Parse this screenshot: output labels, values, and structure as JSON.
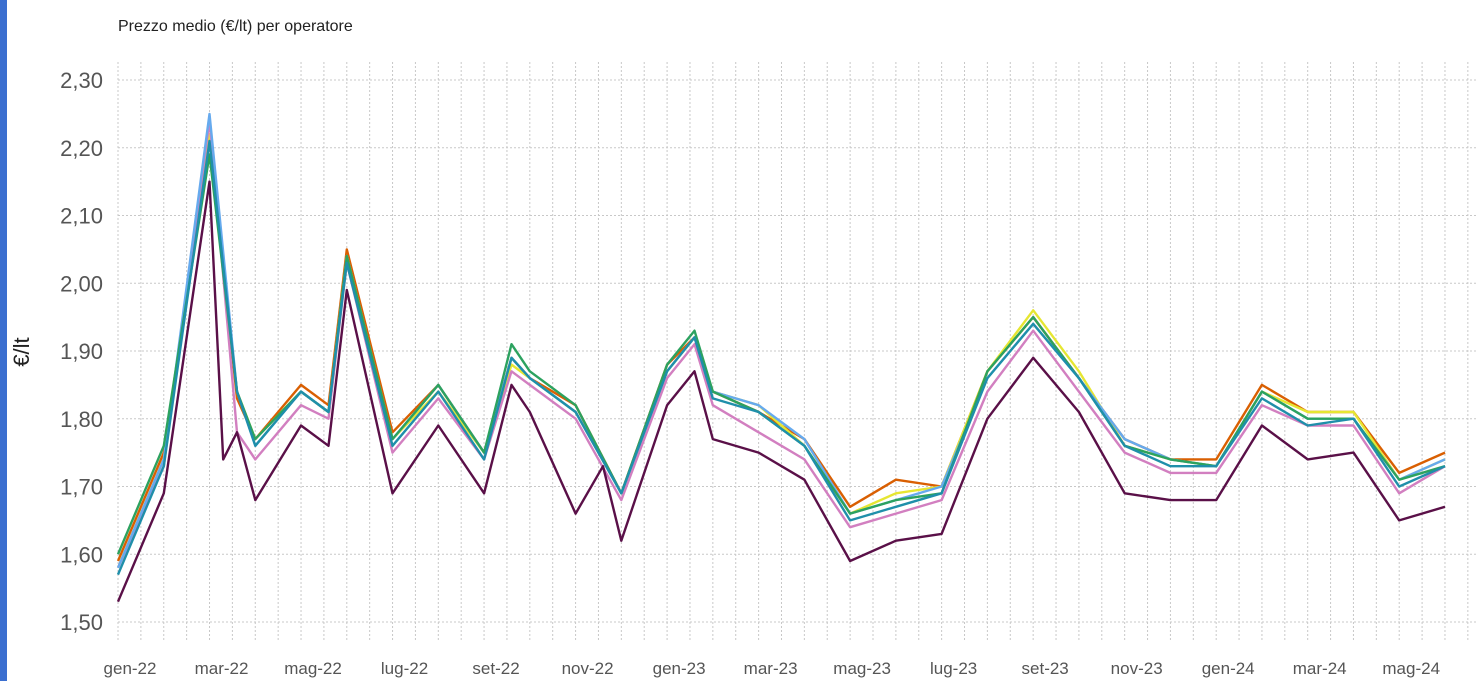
{
  "chart_data": {
    "type": "line",
    "title": "Prezzo medio (€/lt) per operatore",
    "ylabel": "€/lt",
    "xlabel": "",
    "ylim": [
      1.5,
      2.3
    ],
    "y_ticks": [
      "1,50",
      "1,60",
      "1,70",
      "1,80",
      "1,90",
      "2,00",
      "2,10",
      "2,20",
      "2,30"
    ],
    "x_ticks": [
      "gen-22",
      "mar-22",
      "mag-22",
      "lug-22",
      "set-22",
      "nov-22",
      "gen-23",
      "mar-23",
      "mag-23",
      "lug-23",
      "set-23",
      "nov-23",
      "gen-24",
      "mar-24",
      "mag-24"
    ],
    "grid": true,
    "months": [
      "gen-22",
      "feb-22",
      "mar-22",
      "apr-22",
      "mag-22",
      "giu-22",
      "lug-22",
      "ago-22",
      "set-22",
      "ott-22",
      "nov-22",
      "dic-22",
      "gen-23",
      "feb-23",
      "mar-23",
      "apr-23",
      "mag-23",
      "giu-23",
      "lug-23",
      "ago-23",
      "set-23",
      "ott-23",
      "nov-23",
      "dic-23",
      "gen-24",
      "feb-24",
      "mar-24",
      "apr-24",
      "mag-24",
      "giu-24"
    ],
    "series": [
      {
        "color": "#d95f02",
        "points": [
          [
            "gen-22",
            1.59
          ],
          [
            "feb-22",
            1.75
          ],
          [
            "mar-22",
            2.21
          ],
          [
            "mar-22",
            1.83
          ],
          [
            "apr-22",
            1.77
          ],
          [
            "mag-22",
            1.85
          ],
          [
            "mag-22",
            1.82
          ],
          [
            "giu-22",
            2.05
          ],
          [
            "lug-22",
            1.78
          ],
          [
            "ago-22",
            1.85
          ],
          [
            "set-22",
            1.75
          ],
          [
            "set-22",
            1.89
          ],
          [
            "ott-22",
            1.86
          ],
          [
            "nov-22",
            1.82
          ],
          [
            "dic-22",
            1.69
          ],
          [
            "gen-23",
            1.88
          ],
          [
            "gen-23",
            1.92
          ],
          [
            "feb-23",
            1.84
          ],
          [
            "mar-23",
            1.81
          ],
          [
            "apr-23",
            1.77
          ],
          [
            "mag-23",
            1.67
          ],
          [
            "giu-23",
            1.71
          ],
          [
            "lug-23",
            1.7
          ],
          [
            "ago-23",
            1.87
          ],
          [
            "set-23",
            1.95
          ],
          [
            "ott-23",
            1.86
          ],
          [
            "nov-23",
            1.77
          ],
          [
            "dic-23",
            1.74
          ],
          [
            "gen-24",
            1.74
          ],
          [
            "feb-24",
            1.85
          ],
          [
            "mar-24",
            1.81
          ],
          [
            "apr-24",
            1.81
          ],
          [
            "mag-24",
            1.72
          ],
          [
            "giu-24",
            1.75
          ]
        ]
      },
      {
        "color": "#e6e632",
        "points": [
          [
            "gen-22",
            1.58
          ],
          [
            "feb-22",
            1.74
          ],
          [
            "mar-22",
            2.22
          ],
          [
            "mar-22",
            1.84
          ],
          [
            "apr-22",
            1.77
          ],
          [
            "mag-22",
            1.84
          ],
          [
            "mag-22",
            1.81
          ],
          [
            "giu-22",
            2.04
          ],
          [
            "lug-22",
            1.77
          ],
          [
            "ago-22",
            1.84
          ],
          [
            "set-22",
            1.75
          ],
          [
            "set-22",
            1.88
          ],
          [
            "ott-22",
            1.86
          ],
          [
            "nov-22",
            1.81
          ],
          [
            "dic-22",
            1.69
          ],
          [
            "gen-23",
            1.87
          ],
          [
            "gen-23",
            1.92
          ],
          [
            "feb-23",
            1.84
          ],
          [
            "mar-23",
            1.82
          ],
          [
            "apr-23",
            1.76
          ],
          [
            "mag-23",
            1.66
          ],
          [
            "giu-23",
            1.69
          ],
          [
            "lug-23",
            1.7
          ],
          [
            "ago-23",
            1.87
          ],
          [
            "set-23",
            1.96
          ],
          [
            "ott-23",
            1.87
          ],
          [
            "nov-23",
            1.76
          ],
          [
            "dic-23",
            1.74
          ],
          [
            "gen-24",
            1.73
          ],
          [
            "feb-24",
            1.84
          ],
          [
            "mar-24",
            1.81
          ],
          [
            "apr-24",
            1.81
          ],
          [
            "mag-24",
            1.71
          ],
          [
            "giu-24",
            1.74
          ]
        ]
      },
      {
        "color": "#d27fc0",
        "points": [
          [
            "gen-22",
            1.58
          ],
          [
            "feb-22",
            1.73
          ],
          [
            "mar-22",
            2.24
          ],
          [
            "mar-22",
            1.78
          ],
          [
            "apr-22",
            1.74
          ],
          [
            "mag-22",
            1.82
          ],
          [
            "mag-22",
            1.8
          ],
          [
            "giu-22",
            2.03
          ],
          [
            "lug-22",
            1.75
          ],
          [
            "ago-22",
            1.83
          ],
          [
            "set-22",
            1.74
          ],
          [
            "set-22",
            1.87
          ],
          [
            "ott-22",
            1.85
          ],
          [
            "nov-22",
            1.8
          ],
          [
            "dic-22",
            1.68
          ],
          [
            "gen-23",
            1.86
          ],
          [
            "gen-23",
            1.91
          ],
          [
            "feb-23",
            1.82
          ],
          [
            "mar-23",
            1.78
          ],
          [
            "apr-23",
            1.74
          ],
          [
            "mag-23",
            1.64
          ],
          [
            "giu-23",
            1.66
          ],
          [
            "lug-23",
            1.68
          ],
          [
            "ago-23",
            1.84
          ],
          [
            "set-23",
            1.93
          ],
          [
            "ott-23",
            1.84
          ],
          [
            "nov-23",
            1.75
          ],
          [
            "dic-23",
            1.72
          ],
          [
            "gen-24",
            1.72
          ],
          [
            "feb-24",
            1.82
          ],
          [
            "mar-24",
            1.79
          ],
          [
            "apr-24",
            1.79
          ],
          [
            "mag-24",
            1.69
          ],
          [
            "giu-24",
            1.73
          ]
        ]
      },
      {
        "color": "#66aaee",
        "points": [
          [
            "gen-22",
            1.58
          ],
          [
            "feb-22",
            1.74
          ],
          [
            "mar-22",
            2.25
          ],
          [
            "mar-22",
            1.84
          ],
          [
            "apr-22",
            1.76
          ],
          [
            "mag-22",
            1.84
          ],
          [
            "mag-22",
            1.81
          ],
          [
            "giu-22",
            2.04
          ],
          [
            "lug-22",
            1.77
          ],
          [
            "ago-22",
            1.85
          ],
          [
            "set-22",
            1.75
          ],
          [
            "set-22",
            1.89
          ],
          [
            "ott-22",
            1.86
          ],
          [
            "nov-22",
            1.81
          ],
          [
            "dic-22",
            1.69
          ],
          [
            "gen-23",
            1.87
          ],
          [
            "gen-23",
            1.92
          ],
          [
            "feb-23",
            1.84
          ],
          [
            "mar-23",
            1.82
          ],
          [
            "apr-23",
            1.77
          ],
          [
            "mag-23",
            1.66
          ],
          [
            "giu-23",
            1.68
          ],
          [
            "lug-23",
            1.7
          ],
          [
            "ago-23",
            1.86
          ],
          [
            "set-23",
            1.94
          ],
          [
            "ott-23",
            1.86
          ],
          [
            "nov-23",
            1.77
          ],
          [
            "dic-23",
            1.74
          ],
          [
            "gen-24",
            1.73
          ],
          [
            "feb-24",
            1.84
          ],
          [
            "mar-24",
            1.8
          ],
          [
            "apr-24",
            1.8
          ],
          [
            "mag-24",
            1.71
          ],
          [
            "giu-24",
            1.74
          ]
        ]
      },
      {
        "color": "#2ca25f",
        "points": [
          [
            "gen-22",
            1.6
          ],
          [
            "feb-22",
            1.76
          ],
          [
            "mar-22",
            2.19
          ],
          [
            "mar-22",
            1.84
          ],
          [
            "apr-22",
            1.77
          ],
          [
            "mag-22",
            1.84
          ],
          [
            "mag-22",
            1.81
          ],
          [
            "giu-22",
            2.04
          ],
          [
            "lug-22",
            1.77
          ],
          [
            "ago-22",
            1.85
          ],
          [
            "set-22",
            1.75
          ],
          [
            "set-22",
            1.91
          ],
          [
            "ott-22",
            1.87
          ],
          [
            "nov-22",
            1.82
          ],
          [
            "dic-22",
            1.69
          ],
          [
            "gen-23",
            1.88
          ],
          [
            "gen-23",
            1.93
          ],
          [
            "feb-23",
            1.84
          ],
          [
            "mar-23",
            1.81
          ],
          [
            "apr-23",
            1.76
          ],
          [
            "mag-23",
            1.66
          ],
          [
            "giu-23",
            1.68
          ],
          [
            "lug-23",
            1.69
          ],
          [
            "ago-23",
            1.87
          ],
          [
            "set-23",
            1.95
          ],
          [
            "ott-23",
            1.86
          ],
          [
            "nov-23",
            1.76
          ],
          [
            "dic-23",
            1.74
          ],
          [
            "gen-24",
            1.73
          ],
          [
            "feb-24",
            1.84
          ],
          [
            "mar-24",
            1.8
          ],
          [
            "apr-24",
            1.8
          ],
          [
            "mag-24",
            1.71
          ],
          [
            "giu-24",
            1.73
          ]
        ]
      },
      {
        "color": "#1f8faa",
        "points": [
          [
            "gen-22",
            1.57
          ],
          [
            "feb-22",
            1.73
          ],
          [
            "mar-22",
            2.21
          ],
          [
            "mar-22",
            1.84
          ],
          [
            "apr-22",
            1.76
          ],
          [
            "mag-22",
            1.84
          ],
          [
            "mag-22",
            1.81
          ],
          [
            "giu-22",
            2.03
          ],
          [
            "lug-22",
            1.76
          ],
          [
            "ago-22",
            1.84
          ],
          [
            "set-22",
            1.74
          ],
          [
            "set-22",
            1.89
          ],
          [
            "ott-22",
            1.86
          ],
          [
            "nov-22",
            1.81
          ],
          [
            "dic-22",
            1.69
          ],
          [
            "gen-23",
            1.87
          ],
          [
            "gen-23",
            1.92
          ],
          [
            "feb-23",
            1.83
          ],
          [
            "mar-23",
            1.81
          ],
          [
            "apr-23",
            1.76
          ],
          [
            "mag-23",
            1.65
          ],
          [
            "giu-23",
            1.67
          ],
          [
            "lug-23",
            1.69
          ],
          [
            "ago-23",
            1.86
          ],
          [
            "set-23",
            1.94
          ],
          [
            "ott-23",
            1.86
          ],
          [
            "nov-23",
            1.76
          ],
          [
            "dic-23",
            1.73
          ],
          [
            "gen-24",
            1.73
          ],
          [
            "feb-24",
            1.83
          ],
          [
            "mar-24",
            1.79
          ],
          [
            "apr-24",
            1.8
          ],
          [
            "mag-24",
            1.7
          ],
          [
            "giu-24",
            1.73
          ]
        ]
      },
      {
        "color": "#5a1048",
        "points": [
          [
            "gen-22",
            1.53
          ],
          [
            "feb-22",
            1.69
          ],
          [
            "mar-22",
            2.15
          ],
          [
            "mar-22",
            1.74
          ],
          [
            "mar-22",
            1.78
          ],
          [
            "apr-22",
            1.68
          ],
          [
            "mag-22",
            1.79
          ],
          [
            "mag-22",
            1.76
          ],
          [
            "giu-22",
            1.99
          ],
          [
            "lug-22",
            1.69
          ],
          [
            "ago-22",
            1.79
          ],
          [
            "set-22",
            1.69
          ],
          [
            "set-22",
            1.85
          ],
          [
            "ott-22",
            1.81
          ],
          [
            "nov-22",
            1.66
          ],
          [
            "nov-22",
            1.73
          ],
          [
            "dic-22",
            1.62
          ],
          [
            "gen-23",
            1.82
          ],
          [
            "gen-23",
            1.87
          ],
          [
            "feb-23",
            1.77
          ],
          [
            "mar-23",
            1.75
          ],
          [
            "apr-23",
            1.71
          ],
          [
            "mag-23",
            1.59
          ],
          [
            "giu-23",
            1.62
          ],
          [
            "lug-23",
            1.63
          ],
          [
            "ago-23",
            1.8
          ],
          [
            "set-23",
            1.89
          ],
          [
            "ott-23",
            1.81
          ],
          [
            "nov-23",
            1.69
          ],
          [
            "dic-23",
            1.68
          ],
          [
            "gen-24",
            1.68
          ],
          [
            "feb-24",
            1.79
          ],
          [
            "mar-24",
            1.74
          ],
          [
            "apr-24",
            1.75
          ],
          [
            "mag-24",
            1.65
          ],
          [
            "giu-24",
            1.67
          ]
        ]
      }
    ]
  }
}
